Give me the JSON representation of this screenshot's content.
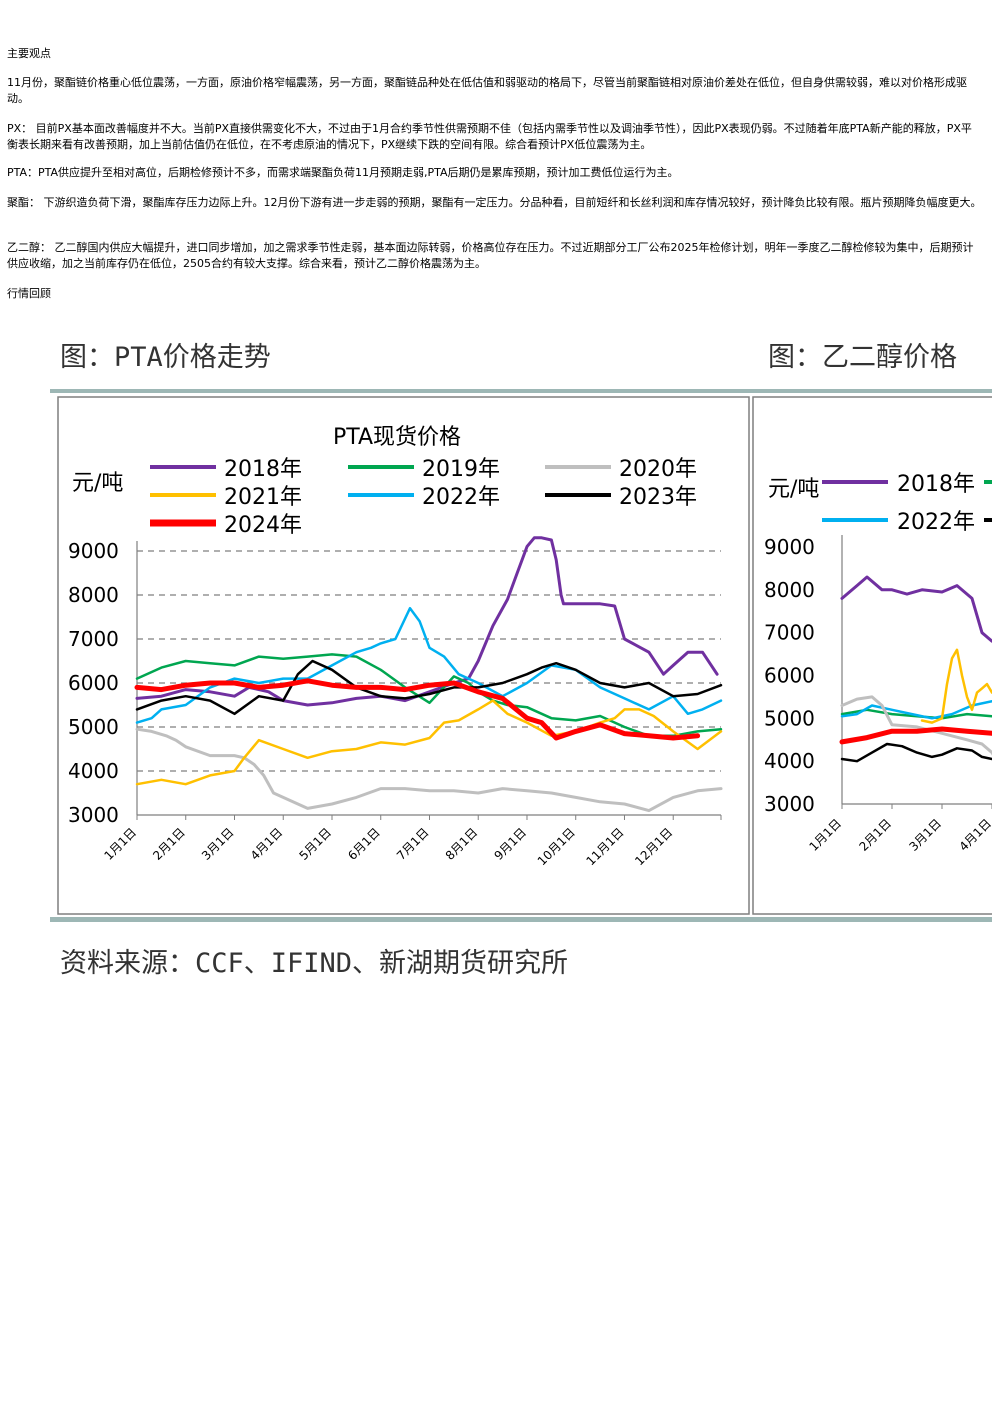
{
  "text": {
    "heading_views": "主要观点",
    "para_overview": "11月份，聚酯链价格重心低位震荡，一方面，原油价格窄幅震荡，另一方面，聚酯链品种处在低估值和弱驱动的格局下，尽管当前聚酯链相对原油价差处在低位，但自身供需较弱，难以对价格形成驱动。",
    "para_px": "PX： 目前PX基本面改善幅度并不大。当前PX直接供需变化不大，不过由于1月合约季节性供需预期不佳（包括内需季节性以及调油季节性），因此PX表现仍弱。不过随着年底PTA新产能的释放，PX平衡表长期来看有改善预期，加上当前估值仍在低位，在不考虑原油的情况下，PX继续下跌的空间有限。综合看预计PX低位震荡为主。",
    "para_pta": "PTA：PTA供应提升至相对高位，后期检修预计不多，而需求端聚酯负荷11月预期走弱,PTA后期仍是累库预期，预计加工费低位运行为主。",
    "para_polyester": "聚酯： 下游织造负荷下滑，聚酯库存压力边际上升。12月份下游有进一步走弱的预期，聚酯有一定压力。分品种看，目前短纤和长丝利润和库存情况较好，预计降负比较有限。瓶片预期降负幅度更大。",
    "para_meg": "乙二醇： 乙二醇国内供应大幅提升，进口同步增加，加之需求季节性走弱，基本面边际转弱，价格高位存在压力。不过近期部分工厂公布2025年检修计划，明年一季度乙二醇检修较为集中，后期预计供应收缩，加之当前库存仍在低位，2505合约有较大支撑。综合来看，预计乙二醇价格震荡为主。",
    "heading_review": "行情回顾",
    "figure_left_caption": "图：PTA价格走势",
    "figure_right_caption": "图：乙二醇价格",
    "source": "资料来源：CCF、IFIND、新湖期货研究所"
  },
  "chart_data": [
    {
      "type": "line",
      "title": "PTA现货价格",
      "ylabel": "元/吨",
      "ylim": [
        3000,
        9000
      ],
      "yticks": [
        9000,
        8000,
        7000,
        6000,
        5000,
        4000,
        3000
      ],
      "xlim": [
        1,
        12.98
      ],
      "x_ticks": [
        "1月1日",
        "2月1日",
        "3月1日",
        "4月1日",
        "5月1日",
        "6月1日",
        "7月1日",
        "8月1日",
        "9月1日",
        "10月1日",
        "11月1日",
        "12月1日"
      ],
      "grid": "horizontal-dashed",
      "legend": "top",
      "series": [
        {
          "name": "2018年",
          "color": "#7030A0",
          "width": 3,
          "x": [
            1,
            1.5,
            2,
            2.5,
            3,
            3.3,
            3.7,
            4,
            4.5,
            5,
            5.5,
            6,
            6.5,
            7,
            7.5,
            7.8,
            8,
            8.3,
            8.6,
            8.8,
            9,
            9.15,
            9.3,
            9.5,
            9.6,
            9.7,
            9.75,
            9.8,
            10,
            10.5,
            10.8,
            11,
            11.5,
            11.8,
            12,
            12.3,
            12.6,
            12.9
          ],
          "y": [
            5650,
            5700,
            5850,
            5800,
            5700,
            5900,
            5800,
            5600,
            5500,
            5550,
            5650,
            5700,
            5600,
            5800,
            6000,
            6100,
            6500,
            7300,
            7900,
            8500,
            9100,
            9300,
            9300,
            9250,
            8800,
            8000,
            7800,
            7800,
            7800,
            7800,
            7750,
            7000,
            6700,
            6200,
            6400,
            6700,
            6700,
            6200
          ]
        },
        {
          "name": "2019年",
          "color": "#00A650",
          "width": 2.5,
          "x": [
            1,
            1.5,
            2,
            2.5,
            3,
            3.5,
            4,
            4.5,
            5,
            5.5,
            6,
            6.5,
            7,
            7.5,
            7.8,
            8,
            8.3,
            8.6,
            9,
            9.5,
            10,
            10.5,
            11,
            11.5,
            12,
            12.5,
            12.98
          ],
          "y": [
            6100,
            6350,
            6500,
            6450,
            6400,
            6600,
            6550,
            6600,
            6650,
            6600,
            6300,
            5900,
            5550,
            6150,
            6000,
            5800,
            5600,
            5500,
            5450,
            5200,
            5150,
            5250,
            5000,
            4800,
            4800,
            4900,
            4950
          ]
        },
        {
          "name": "2020年",
          "color": "#BFBFBF",
          "width": 3,
          "x": [
            1,
            1.3,
            1.6,
            1.8,
            2,
            2.5,
            3,
            3.2,
            3.4,
            3.6,
            3.8,
            4,
            4.5,
            5,
            5.5,
            6,
            6.5,
            7,
            7.5,
            8,
            8.5,
            9,
            9.5,
            10,
            10.5,
            11,
            11.5,
            12,
            12.5,
            12.98
          ],
          "y": [
            4950,
            4900,
            4800,
            4700,
            4550,
            4350,
            4350,
            4300,
            4150,
            3900,
            3500,
            3400,
            3150,
            3250,
            3400,
            3600,
            3600,
            3550,
            3550,
            3500,
            3600,
            3550,
            3500,
            3400,
            3300,
            3250,
            3100,
            3400,
            3550,
            3600
          ]
        },
        {
          "name": "2021年",
          "color": "#FFC000",
          "width": 2.5,
          "x": [
            1,
            1.5,
            2,
            2.5,
            3,
            3.2,
            3.5,
            4,
            4.5,
            5,
            5.5,
            6,
            6.5,
            7,
            7.3,
            7.6,
            8,
            8.3,
            8.6,
            9,
            9.5,
            10,
            10.5,
            10.8,
            11,
            11.3,
            11.6,
            12,
            12.5,
            12.98
          ],
          "y": [
            3700,
            3800,
            3700,
            3900,
            4000,
            4300,
            4700,
            4500,
            4300,
            4450,
            4500,
            4650,
            4600,
            4750,
            5100,
            5150,
            5400,
            5600,
            5300,
            5100,
            4800,
            4900,
            5100,
            5200,
            5400,
            5400,
            5250,
            4900,
            4500,
            4900
          ]
        },
        {
          "name": "2022年",
          "color": "#00B0F0",
          "width": 2.5,
          "x": [
            1,
            1.3,
            1.5,
            2,
            2.5,
            3,
            3.5,
            4,
            4.5,
            5,
            5.5,
            5.8,
            6,
            6.3,
            6.6,
            6.8,
            7,
            7.3,
            7.6,
            8,
            8.5,
            9,
            9.5,
            10,
            10.5,
            11,
            11.5,
            12,
            12.3,
            12.6,
            12.98
          ],
          "y": [
            5100,
            5200,
            5400,
            5500,
            5900,
            6100,
            6000,
            6100,
            6100,
            6400,
            6700,
            6800,
            6900,
            7000,
            7700,
            7400,
            6800,
            6600,
            6200,
            6000,
            5700,
            6000,
            6400,
            6300,
            5900,
            5650,
            5400,
            5700,
            5300,
            5400,
            5600
          ]
        },
        {
          "name": "2023年",
          "color": "#000000",
          "width": 2.5,
          "x": [
            1,
            1.5,
            2,
            2.5,
            3,
            3.5,
            4,
            4.3,
            4.6,
            5,
            5.5,
            6,
            6.5,
            7,
            7.5,
            8,
            8.5,
            9,
            9.3,
            9.6,
            10,
            10.5,
            11,
            11.5,
            12,
            12.5,
            12.98
          ],
          "y": [
            5400,
            5600,
            5700,
            5600,
            5300,
            5700,
            5600,
            6200,
            6500,
            6300,
            5900,
            5700,
            5650,
            5750,
            5900,
            5900,
            6000,
            6200,
            6350,
            6450,
            6300,
            6000,
            5900,
            6000,
            5700,
            5750,
            5950
          ]
        },
        {
          "name": "2024年",
          "color": "#FF0000",
          "width": 5,
          "x": [
            1,
            1.5,
            2,
            2.5,
            3,
            3.5,
            4,
            4.5,
            5,
            5.5,
            6,
            6.5,
            7,
            7.5,
            8,
            8.5,
            9,
            9.3,
            9.6,
            10,
            10.5,
            11,
            11.5,
            12,
            12.5
          ],
          "y": [
            5900,
            5850,
            5950,
            6000,
            6000,
            5900,
            5950,
            6050,
            5950,
            5900,
            5900,
            5850,
            5950,
            6000,
            5800,
            5650,
            5200,
            5100,
            4750,
            4900,
            5050,
            4850,
            4800,
            4750,
            4800
          ]
        }
      ]
    },
    {
      "type": "line",
      "title": "",
      "ylabel": "元/吨",
      "ylim": [
        3000,
        9000
      ],
      "yticks": [
        9000,
        8000,
        7000,
        6000,
        5000,
        4000,
        3000
      ],
      "x_ticks": [
        "1月1日",
        "2月1日",
        "3月1日",
        "4月1日"
      ],
      "grid": "none",
      "legend": "top",
      "series": [
        {
          "name": "2018年",
          "color": "#7030A0",
          "width": 3,
          "x": [
            1,
            1.3,
            1.5,
            1.8,
            2,
            2.3,
            2.6,
            3,
            3.3,
            3.6,
            3.8,
            4,
            4.2,
            4.4,
            4.6,
            4.8
          ],
          "y": [
            7800,
            8100,
            8300,
            8000,
            8000,
            7900,
            8000,
            7950,
            8100,
            7800,
            7000,
            6800,
            6900,
            7000,
            7200,
            7300
          ]
        },
        {
          "name": "",
          "color": "#00A650",
          "width": 2.5,
          "x": [
            1,
            1.5,
            2,
            2.5,
            3,
            3.5,
            4,
            4.5,
            4.8
          ],
          "y": [
            5100,
            5200,
            5100,
            5050,
            5000,
            5100,
            5050,
            5000,
            4900
          ]
        },
        {
          "name": "2022年",
          "color": "#00B0F0",
          "width": 2.5,
          "x": [
            1,
            1.3,
            1.6,
            2,
            2.4,
            2.8,
            3.2,
            3.6,
            4,
            4.3,
            4.6,
            4.8
          ],
          "y": [
            5050,
            5100,
            5300,
            5200,
            5100,
            5000,
            5100,
            5300,
            5400,
            5200,
            5100,
            5000
          ]
        },
        {
          "name": "",
          "color": "#FFC000",
          "width": 2.5,
          "x": [
            2.6,
            2.8,
            3,
            3.1,
            3.2,
            3.3,
            3.4,
            3.5,
            3.6,
            3.7,
            3.8,
            3.9,
            4
          ],
          "y": [
            4950,
            4900,
            5000,
            5800,
            6400,
            6600,
            6000,
            5500,
            5200,
            5600,
            5700,
            5800,
            5600
          ]
        },
        {
          "name": "",
          "color": "#BFBFBF",
          "width": 3,
          "x": [
            1,
            1.3,
            1.6,
            1.8,
            2,
            2.5,
            3,
            3.5,
            3.8,
            4,
            4.2,
            4.4,
            4.6,
            4.8
          ],
          "y": [
            5300,
            5450,
            5500,
            5300,
            4850,
            4800,
            4650,
            4500,
            4400,
            4200,
            3800,
            3500,
            3200,
            3100
          ]
        },
        {
          "name": "",
          "color": "#000000",
          "width": 2.5,
          "x": [
            1,
            1.3,
            1.6,
            1.9,
            2.2,
            2.5,
            2.8,
            3,
            3.3,
            3.6,
            3.8,
            4,
            4.3,
            4.6,
            4.8
          ],
          "y": [
            4050,
            4000,
            4200,
            4400,
            4350,
            4200,
            4100,
            4150,
            4300,
            4250,
            4100,
            4050,
            4100,
            4200,
            4150
          ]
        },
        {
          "name": "",
          "color": "#FF0000",
          "width": 5,
          "x": [
            1,
            1.5,
            2,
            2.5,
            3,
            3.5,
            4,
            4.5,
            4.8
          ],
          "y": [
            4450,
            4550,
            4700,
            4700,
            4750,
            4700,
            4650,
            4550,
            4500
          ]
        }
      ]
    }
  ]
}
